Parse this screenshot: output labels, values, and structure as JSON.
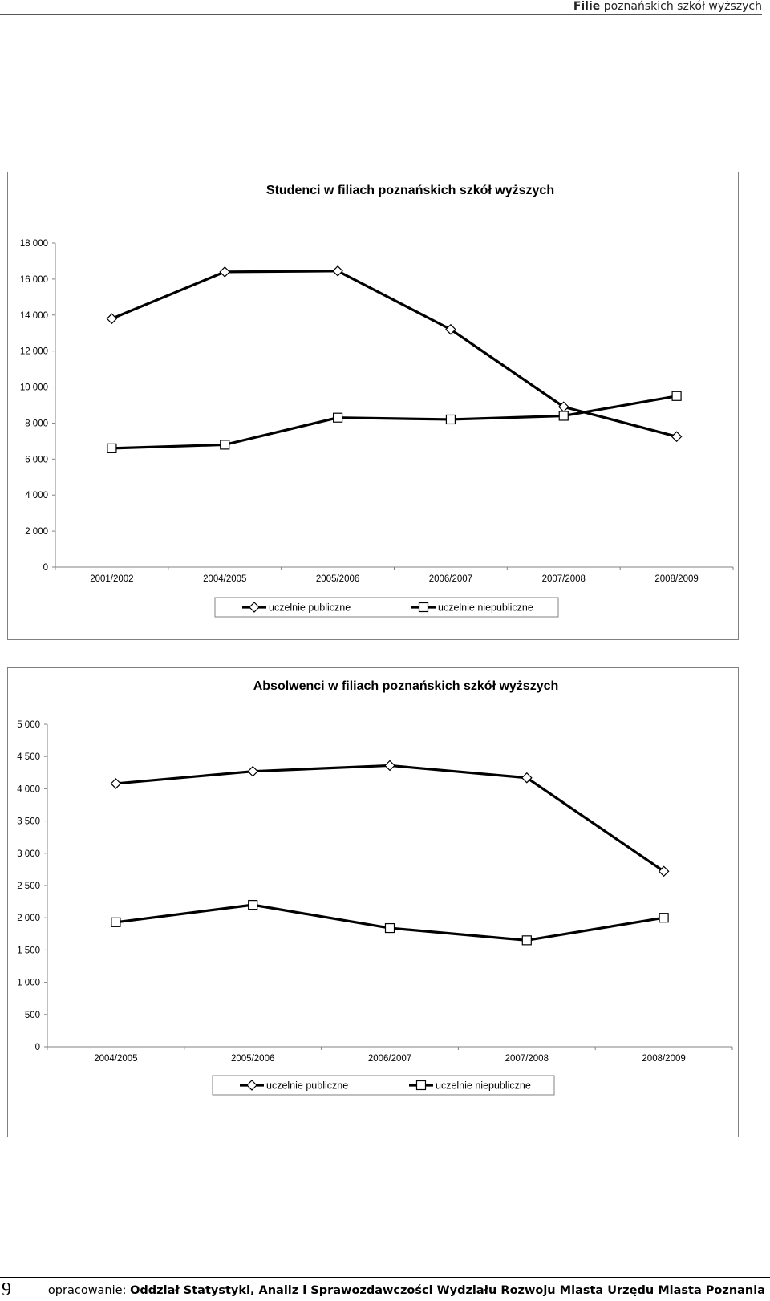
{
  "header": {
    "bold": "Filie",
    "rest": "poznańskich szkół wyższych"
  },
  "chart_data": [
    {
      "type": "line",
      "title": "Studenci w filiach poznańskich szkół wyższych",
      "categories": [
        "2001/2002",
        "2004/2005",
        "2005/2006",
        "2006/2007",
        "2007/2008",
        "2008/2009"
      ],
      "ylim": [
        0,
        18000
      ],
      "yticks": [
        0,
        2000,
        4000,
        6000,
        8000,
        10000,
        12000,
        14000,
        16000,
        18000
      ],
      "ytick_labels": [
        "0",
        "2 000",
        "4 000",
        "6 000",
        "8 000",
        "10 000",
        "12 000",
        "14 000",
        "16 000",
        "18 000"
      ],
      "grid": false,
      "legend_position": "bottom",
      "series": [
        {
          "name": "uczelnie publiczne",
          "marker": "diamond",
          "values": [
            13800,
            16400,
            16450,
            13200,
            8900,
            7250
          ]
        },
        {
          "name": "uczelnie niepubliczne",
          "marker": "square",
          "values": [
            6600,
            6800,
            8300,
            8200,
            8400,
            9500
          ]
        }
      ]
    },
    {
      "type": "line",
      "title": "Absolwenci w filiach poznańskich szkół wyższych",
      "categories": [
        "2004/2005",
        "2005/2006",
        "2006/2007",
        "2007/2008",
        "2008/2009"
      ],
      "ylim": [
        0,
        5000
      ],
      "yticks": [
        0,
        500,
        1000,
        1500,
        2000,
        2500,
        3000,
        3500,
        4000,
        4500,
        5000
      ],
      "ytick_labels": [
        "0",
        "500",
        "1 000",
        "1 500",
        "2 000",
        "2 500",
        "3 000",
        "3 500",
        "4 000",
        "4 500",
        "5 000"
      ],
      "grid": false,
      "legend_position": "bottom",
      "series": [
        {
          "name": "uczelnie publiczne",
          "marker": "diamond",
          "values": [
            4080,
            4270,
            4360,
            4170,
            2720
          ]
        },
        {
          "name": "uczelnie niepubliczne",
          "marker": "square",
          "values": [
            1930,
            2200,
            1840,
            1650,
            2000
          ]
        }
      ]
    }
  ],
  "footer": {
    "page_number": "9",
    "credit_prefix": "opracowanie:",
    "credit_bold": "Oddział Statystyki, Analiz i Sprawozdawczości Wydziału Rozwoju Miasta Urzędu Miasta Poznania"
  },
  "colors": {
    "line": "#000000",
    "frame": "#808080",
    "axis": "#808080"
  }
}
